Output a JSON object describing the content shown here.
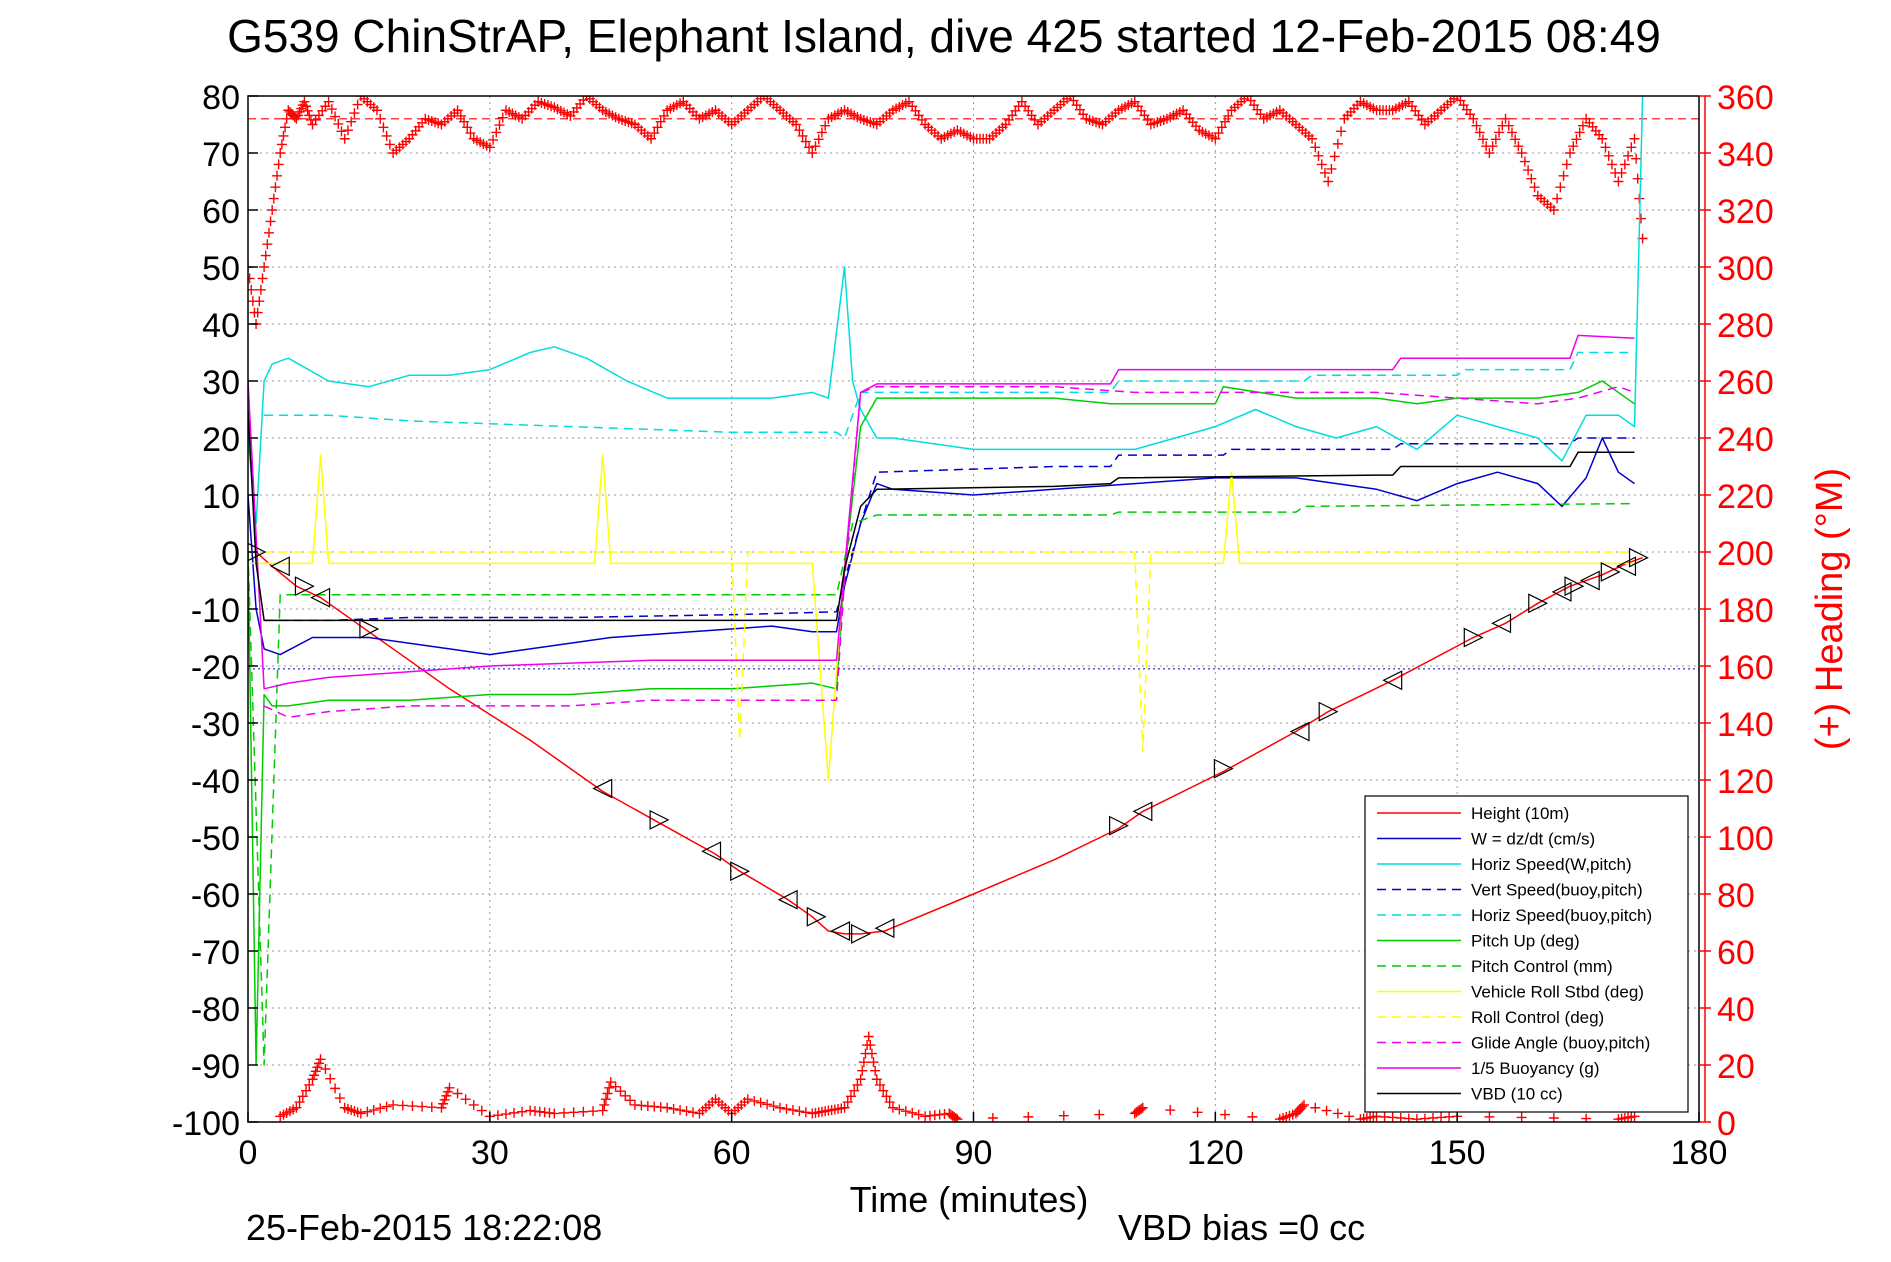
{
  "chart_data": {
    "type": "line",
    "title": "G539 ChinStrAP, Elephant Island, dive 425 started 12-Feb-2015 08:49",
    "xlabel": "Time (minutes)",
    "ylabel_right": "(+) Heading (°M)",
    "footer_date": "25-Feb-2015 18:22:08",
    "footer_bias": "VBD bias =0 cc",
    "xlim": [
      0,
      180
    ],
    "ylim": [
      -100,
      80
    ],
    "ylim_right": [
      0,
      360
    ],
    "x_ticks": [
      0,
      30,
      60,
      90,
      120,
      150,
      180
    ],
    "y_ticks": [
      80,
      70,
      60,
      50,
      40,
      30,
      20,
      10,
      0,
      -10,
      -20,
      -30,
      -40,
      -50,
      -60,
      -70,
      -80,
      -90,
      -100
    ],
    "y_ticks_right": [
      360,
      340,
      320,
      300,
      280,
      260,
      240,
      220,
      200,
      180,
      160,
      140,
      120,
      100,
      80,
      60,
      40,
      20,
      0
    ],
    "grid": true,
    "legend_position": "bottom-right",
    "heading_reference_deg": 352,
    "series": [
      {
        "name": "Height (10m)",
        "color": "#ff0000",
        "style": "solid",
        "x": [
          0,
          1,
          3,
          6,
          9,
          15,
          25,
          35,
          44,
          51,
          58,
          61,
          67,
          70,
          72,
          74,
          76,
          79,
          90,
          100,
          108,
          111,
          121,
          130,
          134,
          142,
          152,
          156,
          160,
          164,
          168,
          171,
          173
        ],
        "y": [
          0,
          0,
          -2.5,
          -6,
          -8,
          -14,
          -24,
          -33,
          -42,
          -47.5,
          -53,
          -56,
          -61,
          -64,
          -66.5,
          -67,
          -67,
          -66.5,
          -60,
          -54,
          -48.5,
          -45.5,
          -38.5,
          -31.5,
          -28,
          -22.5,
          -15,
          -12.5,
          -9,
          -6,
          -4,
          -2,
          -1
        ]
      },
      {
        "name": "W = dz/dt (cm/s)",
        "color": "#0000cc",
        "style": "solid",
        "x": [
          0,
          1,
          2,
          4,
          8,
          15,
          25,
          30,
          35,
          45,
          55,
          65,
          70,
          73,
          74,
          76,
          78,
          80,
          90,
          100,
          110,
          120,
          130,
          140,
          145,
          150,
          155,
          160,
          163,
          166,
          168,
          170,
          172
        ],
        "y": [
          10,
          -10,
          -17,
          -18,
          -15,
          -15,
          -17,
          -18,
          -17,
          -15,
          -14,
          -13,
          -14,
          -14,
          -6,
          5,
          12,
          11,
          10,
          11,
          12,
          13,
          13,
          11,
          9,
          12,
          14,
          12,
          8,
          13,
          20,
          14,
          12
        ]
      },
      {
        "name": "Horiz Speed(W,pitch)",
        "color": "#00dddd",
        "style": "solid",
        "x": [
          0,
          1,
          2,
          3,
          5,
          10,
          15,
          20,
          25,
          30,
          35,
          38,
          42,
          47,
          52,
          60,
          65,
          70,
          72,
          74,
          75,
          76,
          78,
          80,
          90,
          100,
          110,
          120,
          125,
          130,
          135,
          140,
          145,
          150,
          155,
          160,
          163,
          166,
          170,
          172,
          173
        ],
        "y": [
          20,
          5,
          30,
          33,
          34,
          30,
          29,
          31,
          31,
          32,
          35,
          36,
          34,
          30,
          27,
          27,
          27,
          28,
          27,
          50,
          30,
          25,
          20,
          20,
          18,
          18,
          18,
          22,
          25,
          22,
          20,
          22,
          18,
          24,
          22,
          20,
          16,
          24,
          24,
          22,
          80
        ]
      },
      {
        "name": "Vert Speed(buoy,pitch)",
        "color": "#0000cc",
        "style": "dashed",
        "x": [
          2,
          10,
          20,
          40,
          60,
          73,
          74,
          76,
          78,
          100,
          107,
          108,
          121,
          122,
          142,
          143,
          164,
          165,
          172
        ],
        "y": [
          -12,
          -12,
          -11.5,
          -11.5,
          -11,
          -10.5,
          -5,
          5,
          14,
          15,
          15,
          17,
          17,
          18,
          18,
          19,
          19,
          20,
          20
        ]
      },
      {
        "name": "Horiz Speed(buoy,pitch)",
        "color": "#00dddd",
        "style": "dashed",
        "x": [
          2,
          10,
          20,
          40,
          60,
          73,
          74,
          76,
          78,
          100,
          107,
          108,
          131,
          132,
          150,
          151,
          164,
          165,
          172
        ],
        "y": [
          24,
          24,
          23,
          22,
          21,
          21,
          20,
          28,
          28,
          28,
          28,
          30,
          30,
          31,
          31,
          32,
          32,
          35,
          35
        ]
      },
      {
        "name": "Pitch Up (deg)",
        "color": "#00cc00",
        "style": "solid",
        "x": [
          0,
          1,
          2,
          3,
          5,
          10,
          20,
          30,
          40,
          50,
          60,
          70,
          73,
          74,
          76,
          78,
          90,
          100,
          107,
          108,
          120,
          121,
          130,
          140,
          145,
          150,
          160,
          165,
          168,
          172
        ],
        "y": [
          0,
          -90,
          -25,
          -27,
          -27,
          -26,
          -26,
          -25,
          -25,
          -24,
          -24,
          -23,
          -24,
          -3,
          22,
          27,
          27,
          27,
          26,
          26,
          26,
          29,
          27,
          27,
          26,
          27,
          27,
          28,
          30,
          26
        ]
      },
      {
        "name": "Pitch Control (mm)",
        "color": "#00cc00",
        "style": "dashed",
        "x": [
          0,
          2,
          4,
          10,
          40,
          60,
          73,
          75,
          78,
          100,
          107,
          108,
          130,
          131,
          172
        ],
        "y": [
          0,
          -90,
          -7.5,
          -7.5,
          -7.5,
          -7.5,
          -7.5,
          5,
          6.5,
          6.5,
          6.5,
          7,
          7,
          8,
          8.5
        ]
      },
      {
        "name": "Vehicle Roll Stbd (deg)",
        "color": "#ffff00",
        "style": "solid",
        "x": [
          0,
          5,
          8,
          9,
          10,
          15,
          25,
          35,
          43,
          44,
          45,
          55,
          60,
          65,
          70,
          72,
          74,
          76,
          90,
          107,
          110,
          121,
          122,
          123,
          140,
          150,
          160,
          170,
          172
        ],
        "y": [
          -2,
          -2,
          -2,
          17,
          -2,
          -2,
          -2,
          -2,
          -2,
          17,
          -2,
          -2,
          -2,
          -2,
          -2,
          -40,
          -2,
          -2,
          -2,
          -2,
          -2,
          -2,
          14,
          -2,
          -2,
          -2,
          -2,
          -2,
          -2
        ]
      },
      {
        "name": "Roll Control (deg)",
        "color": "#ffff00",
        "style": "dashed",
        "x": [
          0,
          10,
          30,
          60,
          61,
          62,
          80,
          110,
          111,
          112,
          140,
          172
        ],
        "y": [
          0,
          0,
          0,
          0,
          -33,
          0,
          0,
          0,
          -35,
          0,
          0,
          0
        ]
      },
      {
        "name": "Glide Angle (buoy,pitch)",
        "color": "#ee00ee",
        "style": "dashed",
        "x": [
          2,
          5,
          10,
          20,
          30,
          40,
          50,
          60,
          70,
          73,
          74,
          76,
          78,
          100,
          110,
          120,
          130,
          140,
          150,
          160,
          165,
          170,
          172
        ],
        "y": [
          -27,
          -29,
          -28,
          -27,
          -27,
          -27,
          -26,
          -26,
          -26,
          -26,
          -5,
          28,
          29,
          29,
          28,
          28,
          28,
          28,
          27,
          26,
          27,
          29,
          28
        ]
      },
      {
        "name": "1/5 Buoyancy (g)",
        "color": "#ee00ee",
        "style": "solid",
        "x": [
          0,
          2,
          5,
          10,
          20,
          30,
          40,
          50,
          60,
          73,
          74,
          76,
          78,
          100,
          107,
          108,
          140,
          142,
          143,
          164,
          165,
          172
        ],
        "y": [
          30,
          -24,
          -23,
          -22,
          -21,
          -20,
          -19.5,
          -19,
          -19,
          -19,
          -3,
          28,
          29.5,
          29.5,
          29.5,
          32,
          32,
          32,
          34,
          34,
          38,
          37.5
        ]
      },
      {
        "name": "VBD (10 cc)",
        "color": "#000000",
        "style": "solid",
        "x": [
          0,
          1,
          2,
          5,
          15,
          40,
          60,
          73,
          74,
          76,
          78,
          100,
          107,
          108,
          140,
          142,
          143,
          164,
          165,
          172
        ],
        "y": [
          25,
          -2,
          -12,
          -12,
          -12,
          -12,
          -12,
          -12,
          -3,
          8,
          11,
          11.5,
          12,
          13,
          13.5,
          13.5,
          15,
          15,
          17.5,
          17.5
        ]
      }
    ],
    "heading_points": {
      "name": "Heading",
      "color": "#ff0000",
      "marker": "+",
      "x": [
        0,
        1,
        2,
        3,
        4,
        5,
        6,
        7,
        8,
        10,
        12,
        14,
        16,
        18,
        20,
        22,
        24,
        26,
        28,
        30,
        32,
        34,
        36,
        38,
        40,
        42,
        44,
        46,
        48,
        50,
        52,
        54,
        56,
        58,
        60,
        62,
        64,
        66,
        68,
        70,
        72,
        74,
        76,
        78,
        80,
        82,
        84,
        86,
        88,
        90,
        92,
        94,
        96,
        98,
        100,
        102,
        104,
        106,
        108,
        110,
        112,
        114,
        116,
        118,
        120,
        122,
        124,
        126,
        128,
        130,
        132,
        134,
        136,
        138,
        140,
        142,
        144,
        146,
        148,
        150,
        152,
        154,
        156,
        158,
        160,
        162,
        164,
        166,
        168,
        170,
        172,
        173
      ],
      "y": [
        300,
        280,
        300,
        320,
        340,
        355,
        352,
        358,
        350,
        358,
        345,
        360,
        355,
        340,
        345,
        352,
        350,
        355,
        345,
        342,
        355,
        352,
        358,
        356,
        353,
        360,
        355,
        352,
        350,
        345,
        355,
        358,
        352,
        355,
        350,
        355,
        360,
        355,
        350,
        340,
        352,
        355,
        352,
        350,
        355,
        358,
        350,
        345,
        348,
        345,
        345,
        350,
        358,
        350,
        355,
        360,
        352,
        350,
        355,
        358,
        350,
        352,
        355,
        348,
        345,
        355,
        360,
        352,
        355,
        350,
        345,
        330,
        352,
        358,
        355,
        355,
        358,
        350,
        355,
        360,
        352,
        340,
        352,
        340,
        325,
        320,
        340,
        352,
        345,
        330,
        345,
        310
      ]
    },
    "heading_points_low": {
      "name": "Heading (wrapped near 0)",
      "color": "#ff0000",
      "marker": "+",
      "x": [
        4,
        6,
        8,
        9,
        12,
        14,
        18,
        24,
        25,
        30,
        35,
        38,
        44,
        45,
        48,
        52,
        56,
        58,
        60,
        62,
        66,
        70,
        72,
        74,
        76,
        77,
        78,
        80,
        84,
        87,
        88,
        110,
        111,
        128,
        130,
        131,
        138,
        140,
        145,
        150,
        170,
        172
      ],
      "y": [
        2,
        5,
        15,
        22,
        5,
        3,
        6,
        5,
        12,
        2,
        4,
        3,
        4,
        14,
        6,
        5,
        3,
        8,
        3,
        8,
        5,
        3,
        4,
        5,
        15,
        30,
        15,
        5,
        2,
        3,
        1,
        3,
        5,
        1,
        3,
        6,
        1,
        2,
        1,
        2,
        1,
        2
      ]
    },
    "triangle_markers": {
      "name": "Triangle markers on Height",
      "color": "#000000",
      "x": [
        1,
        4,
        7,
        9,
        15,
        44,
        51,
        57.5,
        61,
        67,
        70.5,
        73.5,
        76,
        79,
        108,
        111,
        121,
        130.5,
        134,
        142,
        152,
        155.5,
        160,
        163,
        164.5,
        166.5,
        169,
        171,
        172.5
      ],
      "y": [
        0,
        -2.5,
        -6,
        -8,
        -13.5,
        -41.5,
        -47,
        -52.5,
        -56,
        -61,
        -64,
        -66.5,
        -67,
        -66,
        -48,
        -45.5,
        -38,
        -31.5,
        -28,
        -22.5,
        -15,
        -12.5,
        -9,
        -7,
        -6,
        -5,
        -3.5,
        -2.5,
        -1
      ]
    }
  }
}
